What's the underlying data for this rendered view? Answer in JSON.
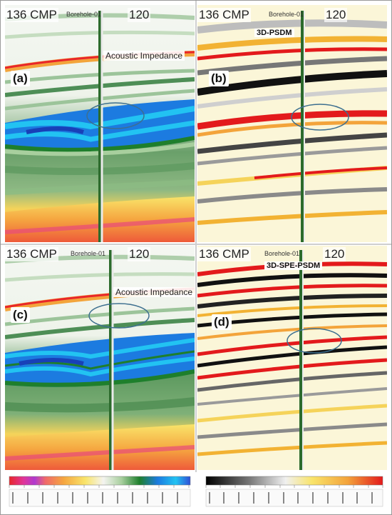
{
  "panels": [
    {
      "letter": "(a)",
      "cmp_label": "136 CMP",
      "borehole": "Borehole-01",
      "trace": "120",
      "overlay": "Acoustic Impedance"
    },
    {
      "letter": "(b)",
      "cmp_label": "136 CMP",
      "borehole": "Borehole-01",
      "trace": "120",
      "overlay": "3D-PSDM"
    },
    {
      "letter": "(c)",
      "cmp_label": "136 CMP",
      "borehole": "Borehole-01",
      "trace": "120",
      "overlay": "Acoustic Impedance"
    },
    {
      "letter": "(d)",
      "cmp_label": "136 CMP",
      "borehole": "Borehole-01",
      "trace": "120",
      "overlay": "3D-SPE-PSDM"
    }
  ],
  "colors": {
    "impedance_low": "#2f4fd6",
    "impedance_mid": "#1e7f2c",
    "impedance_high": "#e8262a",
    "amplitude_negative": "#000000",
    "amplitude_positive": "#e31a1c",
    "highlight_ellipse": "#3d6f8f"
  }
}
